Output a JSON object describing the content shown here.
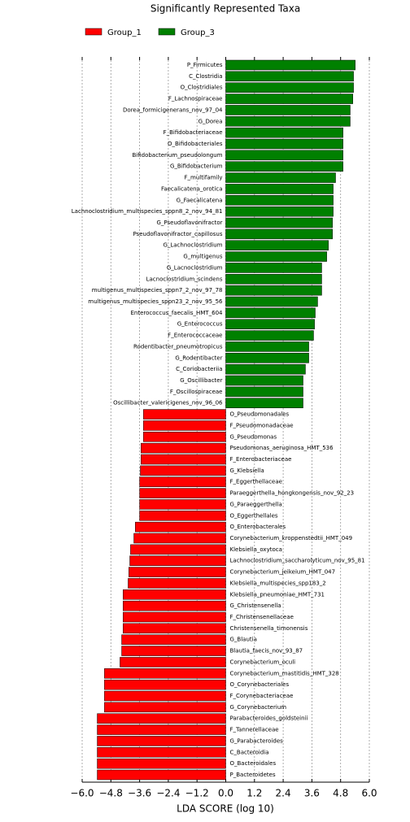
{
  "chart_data": {
    "type": "barh",
    "title": "Significantly Represented Taxa",
    "xlabel": "LDA SCORE (log 10)",
    "xlim": [
      -6,
      6
    ],
    "xticks": [
      {
        "value": -6,
        "label": "−6.0"
      },
      {
        "value": -4.8,
        "label": "−4.8"
      },
      {
        "value": -3.6,
        "label": "−3.6"
      },
      {
        "value": -2.4,
        "label": "−2.4"
      },
      {
        "value": -1.2,
        "label": "−1.2"
      },
      {
        "value": 0,
        "label": "0.0"
      },
      {
        "value": 1.2,
        "label": "1.2"
      },
      {
        "value": 2.4,
        "label": "2.4"
      },
      {
        "value": 3.6,
        "label": "3.6"
      },
      {
        "value": 4.8,
        "label": "4.8"
      },
      {
        "value": 6,
        "label": "6.0"
      }
    ],
    "grid": true,
    "legend": "top-left",
    "categories": [
      "P_Firmicutes",
      "C_Clostridia",
      "O_Clostridiales",
      "F_Lachnospiraceae",
      "Dorea_formicigenerans_nov_97_04",
      "G_Dorea",
      "F_Bifidobacteriaceae",
      "O_Bifidobacteriales",
      "Bifidobacterium_pseudolongum",
      "G_Bifidobacterium",
      "F_multifamily",
      "Faecalicatena_orotica",
      "G_Faecalicatena",
      "Lachnoclostridium_multispecies_sppn8_2_nov_94_81",
      "G_Pseudoflavonifractor",
      "Pseudoflavonifractor_capillosus",
      "G_Lachnoclostridium",
      "G_multigenus",
      "G_Lacnoclostridium",
      "Lacnoclostridium_scindens",
      "multigenus_multispecies_sppn7_2_nov_97_78",
      "multigenus_multispecies_sppn23_2_nov_95_56",
      "Enterococcus_faecalis_HMT_604",
      "G_Enterococcus",
      "F_Enterococcaceae",
      "Rodentibacter_pneumotropicus",
      "G_Rodentibacter",
      "C_Coriobacteriia",
      "G_Oscillibacter",
      "F_Oscillospiraceae",
      "Oscillibacter_valericigenes_nov_96_06",
      "O_Pseudomonadales",
      "F_Pseudomonadaceae",
      "G_Pseudomonas",
      "Pseudomonas_aeruginosa_HMT_536",
      "F_Enterobacteriaceae",
      "G_Klebsiella",
      "F_Eggerthellaceae",
      "Paraeggerthella_hongkongensis_nov_92_23",
      "G_Paraeggerthella",
      "O_Eggerthellales",
      "O_Enterobacterales",
      "Corynebacterium_kroppenstedtii_HMT_049",
      "Klebsiella_oxytoca",
      "Lachnoclostridium_saccharolyticum_nov_95_81",
      "Corynebacterium_jeikeium_HMT_047",
      "Klebsiella_multispecies_spp183_2",
      "Klebsiella_pneumoniae_HMT_731",
      "G_Christensenella",
      "F_Christensenellaceae",
      "Christensenella_timonensis",
      "G_Blautia",
      "Blautia_faecis_nov_93_87",
      "Corynebacterium_oculi",
      "Corynebacterium_mastitidis_HMT_328",
      "O_Corynebacteriales",
      "F_Corynebacteriaceae",
      "G_Corynebacterium",
      "Parabacteroides_goldsteinii",
      "F_Tannerellaceae",
      "G_Parabacteroides",
      "C_Bacteroidia",
      "O_Bacteroidales",
      "P_Bacteroidetes"
    ],
    "series": [
      {
        "name": "Group_1",
        "color": "#ff0000",
        "values": [
          null,
          null,
          null,
          null,
          null,
          null,
          null,
          null,
          null,
          null,
          null,
          null,
          null,
          null,
          null,
          null,
          null,
          null,
          null,
          null,
          null,
          null,
          null,
          null,
          null,
          null,
          null,
          null,
          null,
          null,
          null,
          -3.44,
          -3.44,
          -3.44,
          -3.54,
          -3.54,
          -3.57,
          -3.6,
          -3.6,
          -3.6,
          -3.6,
          -3.78,
          -3.84,
          -3.98,
          -4.01,
          -4.05,
          -4.08,
          -4.29,
          -4.29,
          -4.29,
          -4.29,
          -4.35,
          -4.35,
          -4.42,
          -5.07,
          -5.07,
          -5.07,
          -5.07,
          -5.37,
          -5.37,
          -5.37,
          -5.37,
          -5.37,
          -5.37
        ]
      },
      {
        "name": "Group_3",
        "color": "#008000",
        "values": [
          5.41,
          5.34,
          5.34,
          5.31,
          5.2,
          5.2,
          4.9,
          4.9,
          4.9,
          4.9,
          4.59,
          4.49,
          4.49,
          4.49,
          4.46,
          4.46,
          4.29,
          4.22,
          4.01,
          4.01,
          4.01,
          3.84,
          3.74,
          3.71,
          3.67,
          3.47,
          3.47,
          3.33,
          3.23,
          3.23,
          3.23,
          null,
          null,
          null,
          null,
          null,
          null,
          null,
          null,
          null,
          null,
          null,
          null,
          null,
          null,
          null,
          null,
          null,
          null,
          null,
          null,
          null,
          null,
          null,
          null,
          null,
          null,
          null,
          null,
          null,
          null,
          null,
          null,
          null
        ]
      }
    ]
  }
}
